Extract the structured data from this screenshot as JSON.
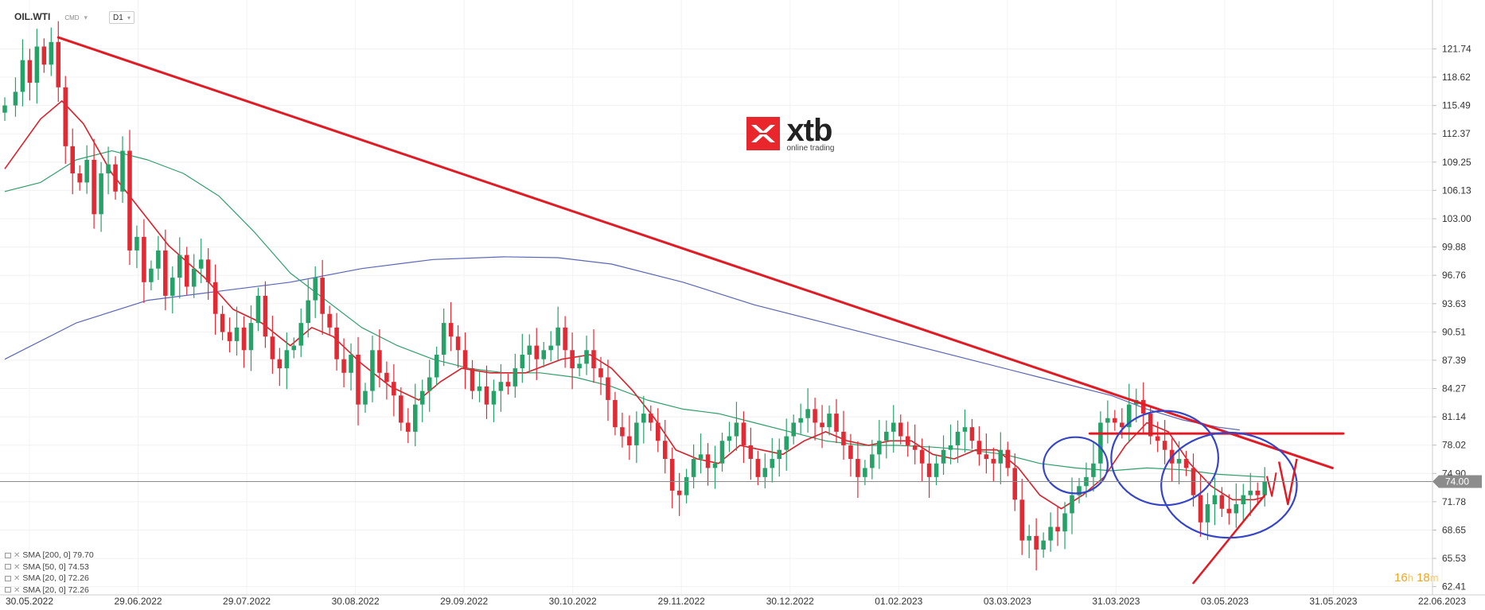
{
  "header": {
    "symbol": "OIL.WTI",
    "market": "CMD",
    "timeframe": "D1"
  },
  "logo": {
    "brand": "xtb",
    "tagline": "online trading"
  },
  "timer": {
    "hours": "16",
    "hours_unit": "h",
    "minutes": "18",
    "minutes_unit": "m"
  },
  "colors": {
    "bull": "#26a269",
    "bear": "#e02b35",
    "sma200": "#5966b8",
    "sma50": "#2e9e6a",
    "sma20": "#d6202a",
    "trendline": "#e21a24",
    "circle": "#3545c9",
    "price_line": "#8c8c8c",
    "price_label_bg": "#8c8c8c"
  },
  "legend": [
    {
      "label": "SMA [200, 0] 79.70"
    },
    {
      "label": "SMA [50, 0] 74.53"
    },
    {
      "label": "SMA [20, 0] 72.26"
    },
    {
      "label": "SMA [20, 0] 72.26"
    }
  ],
  "chart_data": {
    "type": "candlestick",
    "title": "",
    "ylim": [
      61.5,
      124.5
    ],
    "y_ticks": [
      "121.74",
      "118.62",
      "115.49",
      "112.37",
      "109.25",
      "106.13",
      "103.00",
      "99.88",
      "96.76",
      "93.63",
      "90.51",
      "87.39",
      "84.27",
      "81.14",
      "78.02",
      "74.90",
      "71.78",
      "68.65",
      "65.53",
      "62.41"
    ],
    "x_ticks": [
      "30.05.2022",
      "29.06.2022",
      "29.07.2022",
      "30.08.2022",
      "29.09.2022",
      "30.10.2022",
      "29.11.2022",
      "30.12.2022",
      "01.02.2023",
      "03.03.2023",
      "31.03.2023",
      "03.05.2023",
      "31.05.2023",
      "22.06.2023"
    ],
    "current_price": "74.00",
    "current_value": 74.0,
    "x_range": [
      0,
      400
    ],
    "closes": [
      [
        0,
        115.5
      ],
      [
        3,
        117.0
      ],
      [
        5,
        120.5
      ],
      [
        7,
        118.0
      ],
      [
        9,
        122.0
      ],
      [
        11,
        120.0
      ],
      [
        13,
        122.5
      ],
      [
        15,
        117.5
      ],
      [
        17,
        111.0
      ],
      [
        19,
        108.0
      ],
      [
        21,
        107.0
      ],
      [
        23,
        109.5
      ],
      [
        25,
        103.5
      ],
      [
        27,
        108.0
      ],
      [
        29,
        109.0
      ],
      [
        31,
        106.0
      ],
      [
        33,
        110.5
      ],
      [
        35,
        99.5
      ],
      [
        37,
        101.0
      ],
      [
        39,
        96.0
      ],
      [
        41,
        97.5
      ],
      [
        43,
        99.5
      ],
      [
        45,
        94.5
      ],
      [
        47,
        96.5
      ],
      [
        49,
        99.0
      ],
      [
        51,
        95.5
      ],
      [
        53,
        97.5
      ],
      [
        55,
        98.5
      ],
      [
        57,
        96.0
      ],
      [
        59,
        92.5
      ],
      [
        61,
        90.5
      ],
      [
        63,
        89.5
      ],
      [
        65,
        91.0
      ],
      [
        67,
        88.5
      ],
      [
        69,
        91.5
      ],
      [
        71,
        94.5
      ],
      [
        73,
        90.0
      ],
      [
        75,
        87.5
      ],
      [
        77,
        86.5
      ],
      [
        79,
        88.5
      ],
      [
        81,
        89.0
      ],
      [
        83,
        91.5
      ],
      [
        85,
        94.0
      ],
      [
        87,
        96.5
      ],
      [
        89,
        92.5
      ],
      [
        91,
        91.0
      ],
      [
        93,
        87.5
      ],
      [
        95,
        86.0
      ],
      [
        97,
        88.0
      ],
      [
        99,
        82.5
      ],
      [
        101,
        84.0
      ],
      [
        103,
        88.5
      ],
      [
        105,
        86.0
      ],
      [
        107,
        85.0
      ],
      [
        109,
        83.5
      ],
      [
        111,
        80.5
      ],
      [
        113,
        79.5
      ],
      [
        115,
        82.5
      ],
      [
        117,
        84.0
      ],
      [
        119,
        85.5
      ],
      [
        121,
        88.0
      ],
      [
        123,
        91.5
      ],
      [
        125,
        90.0
      ],
      [
        127,
        88.5
      ],
      [
        129,
        86.5
      ],
      [
        131,
        84.0
      ],
      [
        133,
        84.5
      ],
      [
        135,
        82.5
      ],
      [
        137,
        84.0
      ],
      [
        139,
        85.0
      ],
      [
        141,
        84.5
      ],
      [
        143,
        86.5
      ],
      [
        145,
        88.0
      ],
      [
        147,
        89.0
      ],
      [
        149,
        87.5
      ],
      [
        151,
        88.5
      ],
      [
        153,
        89.0
      ],
      [
        155,
        91.0
      ],
      [
        157,
        88.5
      ],
      [
        159,
        86.5
      ],
      [
        161,
        87.0
      ],
      [
        163,
        88.5
      ],
      [
        165,
        86.5
      ],
      [
        167,
        85.5
      ],
      [
        169,
        83.0
      ],
      [
        171,
        80.0
      ],
      [
        173,
        79.0
      ],
      [
        175,
        78.0
      ],
      [
        177,
        80.5
      ],
      [
        179,
        81.5
      ],
      [
        181,
        80.5
      ],
      [
        183,
        78.5
      ],
      [
        185,
        76.5
      ],
      [
        187,
        73.0
      ],
      [
        189,
        72.5
      ],
      [
        191,
        74.5
      ],
      [
        193,
        76.5
      ],
      [
        195,
        77.0
      ],
      [
        197,
        75.5
      ],
      [
        199,
        76.0
      ],
      [
        201,
        78.5
      ],
      [
        203,
        79.0
      ],
      [
        205,
        80.5
      ],
      [
        207,
        78.0
      ],
      [
        209,
        76.5
      ],
      [
        211,
        74.5
      ],
      [
        213,
        75.5
      ],
      [
        215,
        76.5
      ],
      [
        217,
        77.5
      ],
      [
        219,
        79.0
      ],
      [
        221,
        80.5
      ],
      [
        223,
        81.0
      ],
      [
        225,
        82.0
      ],
      [
        227,
        80.5
      ],
      [
        229,
        80.0
      ],
      [
        231,
        81.5
      ],
      [
        233,
        79.5
      ],
      [
        235,
        78.0
      ],
      [
        237,
        76.5
      ],
      [
        239,
        74.5
      ],
      [
        241,
        75.5
      ],
      [
        243,
        77.0
      ],
      [
        245,
        78.5
      ],
      [
        247,
        79.5
      ],
      [
        249,
        80.5
      ],
      [
        251,
        79.0
      ],
      [
        253,
        78.0
      ],
      [
        255,
        77.5
      ],
      [
        257,
        76.0
      ],
      [
        259,
        74.5
      ],
      [
        261,
        76.0
      ],
      [
        263,
        77.5
      ],
      [
        265,
        78.0
      ],
      [
        267,
        79.5
      ],
      [
        269,
        80.0
      ],
      [
        271,
        78.5
      ],
      [
        273,
        77.0
      ],
      [
        275,
        76.5
      ],
      [
        277,
        76.0
      ],
      [
        279,
        77.5
      ],
      [
        281,
        75.5
      ],
      [
        283,
        72.0
      ],
      [
        285,
        67.5
      ],
      [
        287,
        68.0
      ],
      [
        289,
        66.5
      ],
      [
        291,
        67.5
      ],
      [
        293,
        69.0
      ],
      [
        295,
        68.5
      ],
      [
        297,
        70.5
      ],
      [
        299,
        72.5
      ],
      [
        301,
        73.5
      ],
      [
        303,
        74.5
      ],
      [
        305,
        76.0
      ],
      [
        307,
        80.5
      ],
      [
        309,
        81.0
      ],
      [
        311,
        80.5
      ],
      [
        313,
        80.0
      ],
      [
        315,
        82.5
      ],
      [
        317,
        83.0
      ],
      [
        319,
        81.5
      ],
      [
        321,
        79.0
      ],
      [
        323,
        78.5
      ],
      [
        325,
        77.5
      ],
      [
        327,
        76.0
      ],
      [
        329,
        76.5
      ],
      [
        331,
        75.5
      ],
      [
        333,
        72.5
      ],
      [
        335,
        69.5
      ],
      [
        337,
        71.5
      ],
      [
        339,
        72.5
      ],
      [
        341,
        71.0
      ],
      [
        343,
        70.5
      ],
      [
        345,
        71.5
      ],
      [
        347,
        72.5
      ],
      [
        349,
        73.0
      ],
      [
        351,
        72.5
      ],
      [
        353,
        74.0
      ]
    ],
    "trendline": [
      [
        15,
        123.0
      ],
      [
        372,
        75.5
      ]
    ],
    "support_line": [
      [
        304,
        79.3
      ],
      [
        375,
        79.3
      ]
    ],
    "v_line": [
      [
        333,
        62.8
      ],
      [
        353,
        72.5
      ]
    ],
    "circles": [
      {
        "cx": 300,
        "cy": 75.8,
        "rx": 9,
        "ry": 3.1
      },
      {
        "cx": 325,
        "cy": 76.6,
        "rx": 15,
        "ry": 5.2
      },
      {
        "cx": 343,
        "cy": 73.6,
        "rx": 19,
        "ry": 5.8
      }
    ],
    "sma20": [
      [
        0,
        108.5
      ],
      [
        10,
        114.0
      ],
      [
        16,
        116.0
      ],
      [
        22,
        113.5
      ],
      [
        30,
        108.0
      ],
      [
        38,
        104.0
      ],
      [
        46,
        100.0
      ],
      [
        56,
        96.5
      ],
      [
        64,
        93.0
      ],
      [
        72,
        91.5
      ],
      [
        80,
        89.0
      ],
      [
        86,
        91.0
      ],
      [
        92,
        90.0
      ],
      [
        100,
        87.0
      ],
      [
        108,
        84.5
      ],
      [
        116,
        83.0
      ],
      [
        122,
        85.0
      ],
      [
        128,
        86.5
      ],
      [
        136,
        86.0
      ],
      [
        146,
        86.0
      ],
      [
        156,
        87.5
      ],
      [
        164,
        88.0
      ],
      [
        170,
        86.5
      ],
      [
        176,
        84.0
      ],
      [
        182,
        81.0
      ],
      [
        188,
        77.5
      ],
      [
        194,
        76.5
      ],
      [
        200,
        76.0
      ],
      [
        206,
        78.0
      ],
      [
        212,
        77.5
      ],
      [
        218,
        77.0
      ],
      [
        224,
        78.5
      ],
      [
        230,
        79.5
      ],
      [
        236,
        78.5
      ],
      [
        242,
        78.0
      ],
      [
        248,
        78.5
      ],
      [
        254,
        78.5
      ],
      [
        260,
        77.0
      ],
      [
        266,
        76.5
      ],
      [
        272,
        77.5
      ],
      [
        278,
        77.5
      ],
      [
        284,
        75.5
      ],
      [
        290,
        72.5
      ],
      [
        296,
        71.0
      ],
      [
        302,
        72.5
      ],
      [
        308,
        74.5
      ],
      [
        314,
        78.0
      ],
      [
        320,
        80.5
      ],
      [
        326,
        79.5
      ],
      [
        332,
        76.0
      ],
      [
        338,
        73.5
      ],
      [
        344,
        72.0
      ],
      [
        350,
        72.0
      ],
      [
        353,
        72.3
      ]
    ],
    "sma50": [
      [
        0,
        106.0
      ],
      [
        10,
        107.0
      ],
      [
        20,
        109.5
      ],
      [
        30,
        110.5
      ],
      [
        40,
        109.5
      ],
      [
        50,
        108.0
      ],
      [
        60,
        105.5
      ],
      [
        70,
        101.5
      ],
      [
        80,
        97.0
      ],
      [
        90,
        94.0
      ],
      [
        100,
        91.0
      ],
      [
        110,
        89.0
      ],
      [
        120,
        87.5
      ],
      [
        130,
        86.5
      ],
      [
        140,
        86.0
      ],
      [
        150,
        86.0
      ],
      [
        160,
        85.5
      ],
      [
        170,
        84.5
      ],
      [
        180,
        83.0
      ],
      [
        190,
        82.0
      ],
      [
        200,
        81.5
      ],
      [
        210,
        80.5
      ],
      [
        220,
        79.5
      ],
      [
        230,
        78.5
      ],
      [
        240,
        78.0
      ],
      [
        250,
        78.0
      ],
      [
        260,
        77.8
      ],
      [
        270,
        77.5
      ],
      [
        280,
        77.0
      ],
      [
        290,
        76.0
      ],
      [
        300,
        75.5
      ],
      [
        310,
        75.2
      ],
      [
        320,
        75.5
      ],
      [
        330,
        75.3
      ],
      [
        340,
        74.8
      ],
      [
        353,
        74.5
      ]
    ],
    "sma200": [
      [
        0,
        87.5
      ],
      [
        20,
        91.5
      ],
      [
        40,
        94.0
      ],
      [
        60,
        95.0
      ],
      [
        80,
        96.0
      ],
      [
        100,
        97.5
      ],
      [
        120,
        98.5
      ],
      [
        140,
        98.8
      ],
      [
        155,
        98.7
      ],
      [
        170,
        98.0
      ],
      [
        190,
        96.0
      ],
      [
        210,
        93.5
      ],
      [
        230,
        91.5
      ],
      [
        250,
        89.5
      ],
      [
        270,
        87.5
      ],
      [
        290,
        85.5
      ],
      [
        310,
        83.5
      ],
      [
        320,
        82.0
      ],
      [
        330,
        80.8
      ],
      [
        340,
        80.0
      ],
      [
        346,
        79.7
      ]
    ]
  }
}
